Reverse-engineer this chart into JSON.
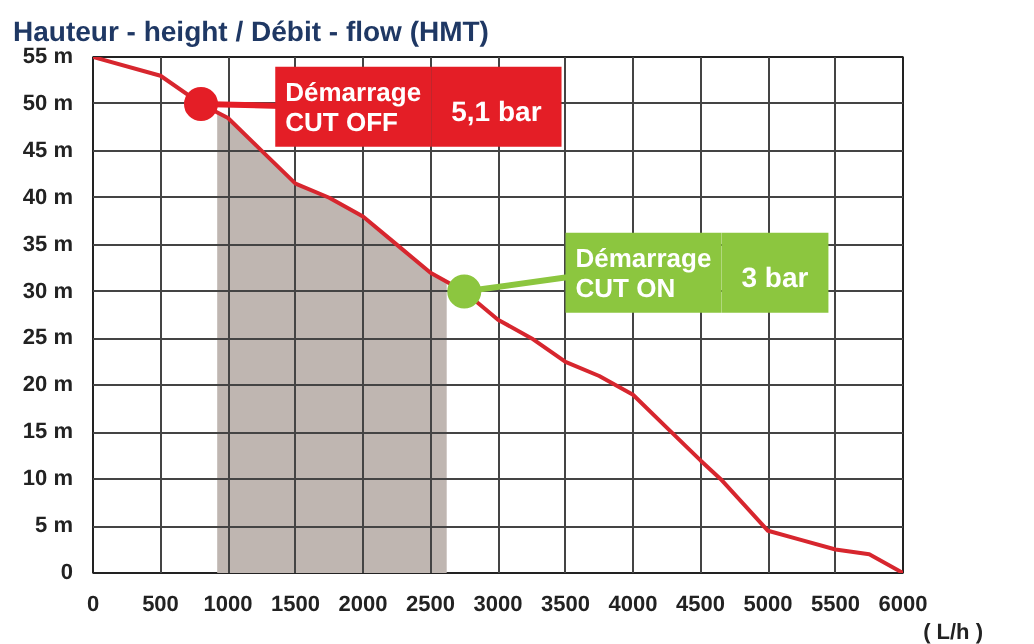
{
  "chart_data": {
    "type": "line",
    "title": "Hauteur - height / Débit - flow (HMT)",
    "xlabel": "( L/h )",
    "x": [
      0,
      500,
      800,
      1000,
      1250,
      1500,
      1750,
      2000,
      2250,
      2500,
      2750,
      3000,
      3250,
      3500,
      3750,
      4000,
      4250,
      4500,
      4650,
      5000,
      5250,
      5500,
      5750,
      6000
    ],
    "series": [
      {
        "color": "#d7262e",
        "values": [
          55,
          53,
          50,
          48.5,
          45,
          41.5,
          40,
          38,
          35,
          32,
          30,
          27,
          25,
          22.5,
          21,
          19,
          15.5,
          12,
          10,
          4.5,
          3.5,
          2.5,
          2,
          0
        ]
      },
      {
        "type": "area",
        "color": "#bfb6b1",
        "x": [
          920,
          1000,
          1250,
          1500,
          1750,
          2000,
          2250,
          2500,
          2620
        ],
        "values": [
          49.1,
          48.5,
          45,
          41.5,
          40,
          38,
          35,
          32,
          31
        ]
      }
    ],
    "xlim": [
      0,
      6000
    ],
    "ylim": [
      0,
      55
    ],
    "xticks": [
      0,
      500,
      1000,
      1500,
      2000,
      2500,
      3000,
      3500,
      4000,
      4500,
      5000,
      5500,
      6000
    ],
    "yticks": [
      {
        "value": 0,
        "label": "0"
      },
      {
        "value": 5,
        "label": "5 m"
      },
      {
        "value": 10,
        "label": "10 m"
      },
      {
        "value": 15,
        "label": "15 m"
      },
      {
        "value": 20,
        "label": "20 m"
      },
      {
        "value": 25,
        "label": "25 m"
      },
      {
        "value": 30,
        "label": "30 m"
      },
      {
        "value": 35,
        "label": "35 m"
      },
      {
        "value": 40,
        "label": "40 m"
      },
      {
        "value": 45,
        "label": "45 m"
      },
      {
        "value": 50,
        "label": "50 m"
      },
      {
        "value": 55,
        "label": "55 m"
      }
    ],
    "annotations": [
      {
        "text": "Démarrage\nCUT OFF",
        "x": 800,
        "y": 50
      },
      "5,1 bar",
      {
        "text": "Démarrage\nCUT ON",
        "x": 2750,
        "y": 30
      },
      "3 bar"
    ],
    "grid": true,
    "marker": "none",
    "line_style": "solid"
  }
}
